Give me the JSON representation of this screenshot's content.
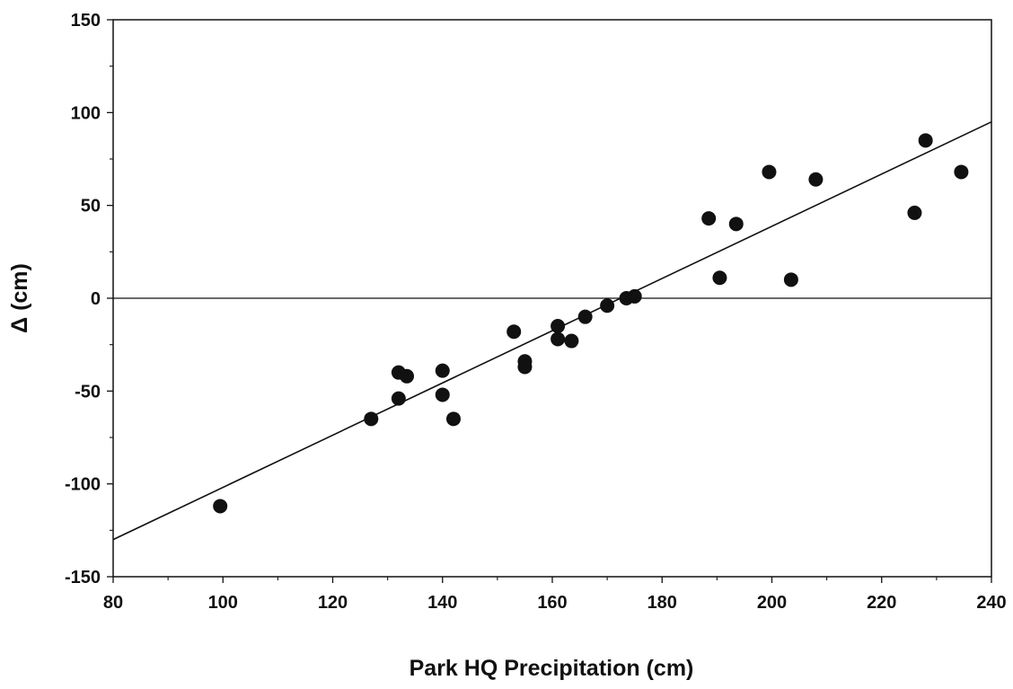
{
  "chart_data": {
    "type": "scatter",
    "title": "",
    "xlabel": "Park HQ Precipitation (cm)",
    "ylabel": "Δ (cm)",
    "xlim": [
      80,
      240
    ],
    "ylim": [
      -150,
      150
    ],
    "x_ticks": [
      80,
      100,
      120,
      140,
      160,
      180,
      200,
      220,
      240
    ],
    "y_ticks": [
      -150,
      -100,
      -50,
      0,
      50,
      100,
      150
    ],
    "x_tick_labels": [
      "80",
      "100",
      "120",
      "140",
      "160",
      "180",
      "200",
      "220",
      "240"
    ],
    "y_tick_labels": [
      "-150",
      "-100",
      "-50",
      "0",
      "50",
      "100",
      "150"
    ],
    "grid": false,
    "zero_line": true,
    "marker_color": "#111111",
    "points": [
      {
        "x": 99.5,
        "y": -112
      },
      {
        "x": 127,
        "y": -65
      },
      {
        "x": 132,
        "y": -40
      },
      {
        "x": 132,
        "y": -54
      },
      {
        "x": 133.5,
        "y": -42
      },
      {
        "x": 140,
        "y": -39
      },
      {
        "x": 140,
        "y": -52
      },
      {
        "x": 142,
        "y": -65
      },
      {
        "x": 153,
        "y": -18
      },
      {
        "x": 155,
        "y": -34
      },
      {
        "x": 155,
        "y": -37
      },
      {
        "x": 161,
        "y": -15
      },
      {
        "x": 161,
        "y": -22
      },
      {
        "x": 163.5,
        "y": -23
      },
      {
        "x": 166,
        "y": -10
      },
      {
        "x": 170,
        "y": -4
      },
      {
        "x": 173.5,
        "y": 0
      },
      {
        "x": 175,
        "y": 1
      },
      {
        "x": 188.5,
        "y": 43
      },
      {
        "x": 190.5,
        "y": 11
      },
      {
        "x": 193.5,
        "y": 40
      },
      {
        "x": 199.5,
        "y": 68
      },
      {
        "x": 203.5,
        "y": 10
      },
      {
        "x": 208,
        "y": 64
      },
      {
        "x": 226,
        "y": 46
      },
      {
        "x": 228,
        "y": 85
      },
      {
        "x": 234.5,
        "y": 68
      }
    ],
    "trendline": {
      "x": [
        80,
        240
      ],
      "y": [
        -130,
        95
      ]
    }
  }
}
